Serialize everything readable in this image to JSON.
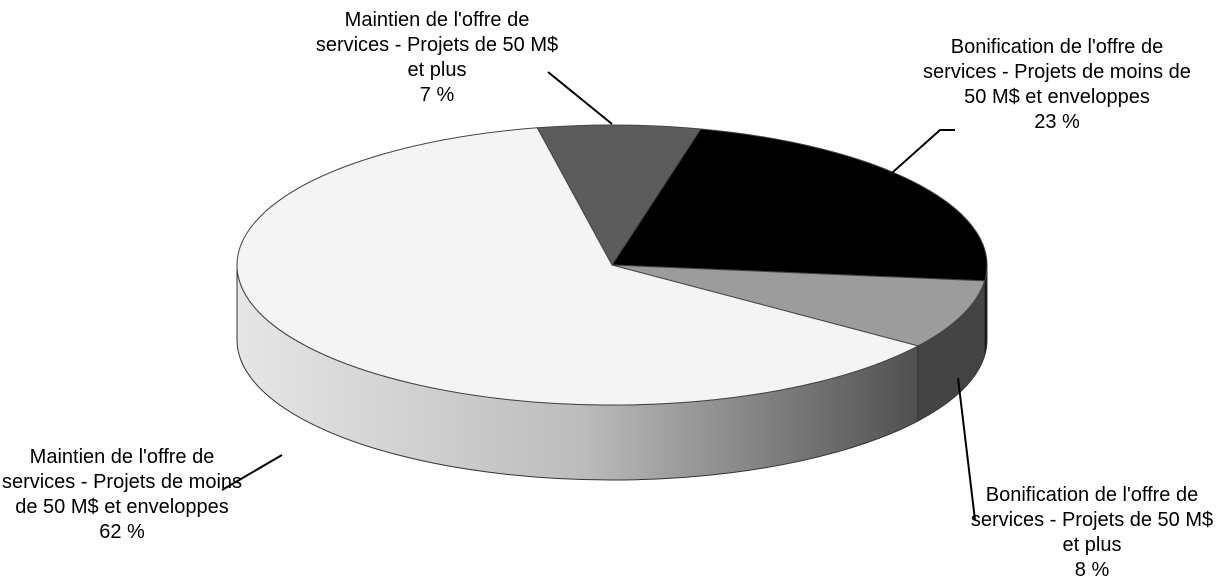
{
  "chart_data": {
    "type": "pie3d",
    "categories": [
      "Maintien de l'offre de services - Projets de 50 M$ et plus",
      "Bonification de l'offre de services - Projets de moins de 50 M$ et enveloppes",
      "Bonification de l'offre de services - Projets de 50 M$ et plus",
      "Maintien de l'offre de services - Projets de moins de 50 M$ et enveloppes"
    ],
    "values": [
      7,
      23,
      8,
      62
    ],
    "value_labels": [
      "7 %",
      "23 %",
      "8 %",
      "62 %"
    ],
    "colors": [
      "#5c5c5c",
      "#000000",
      "#9c9c9c",
      "#f4f4f4"
    ]
  }
}
